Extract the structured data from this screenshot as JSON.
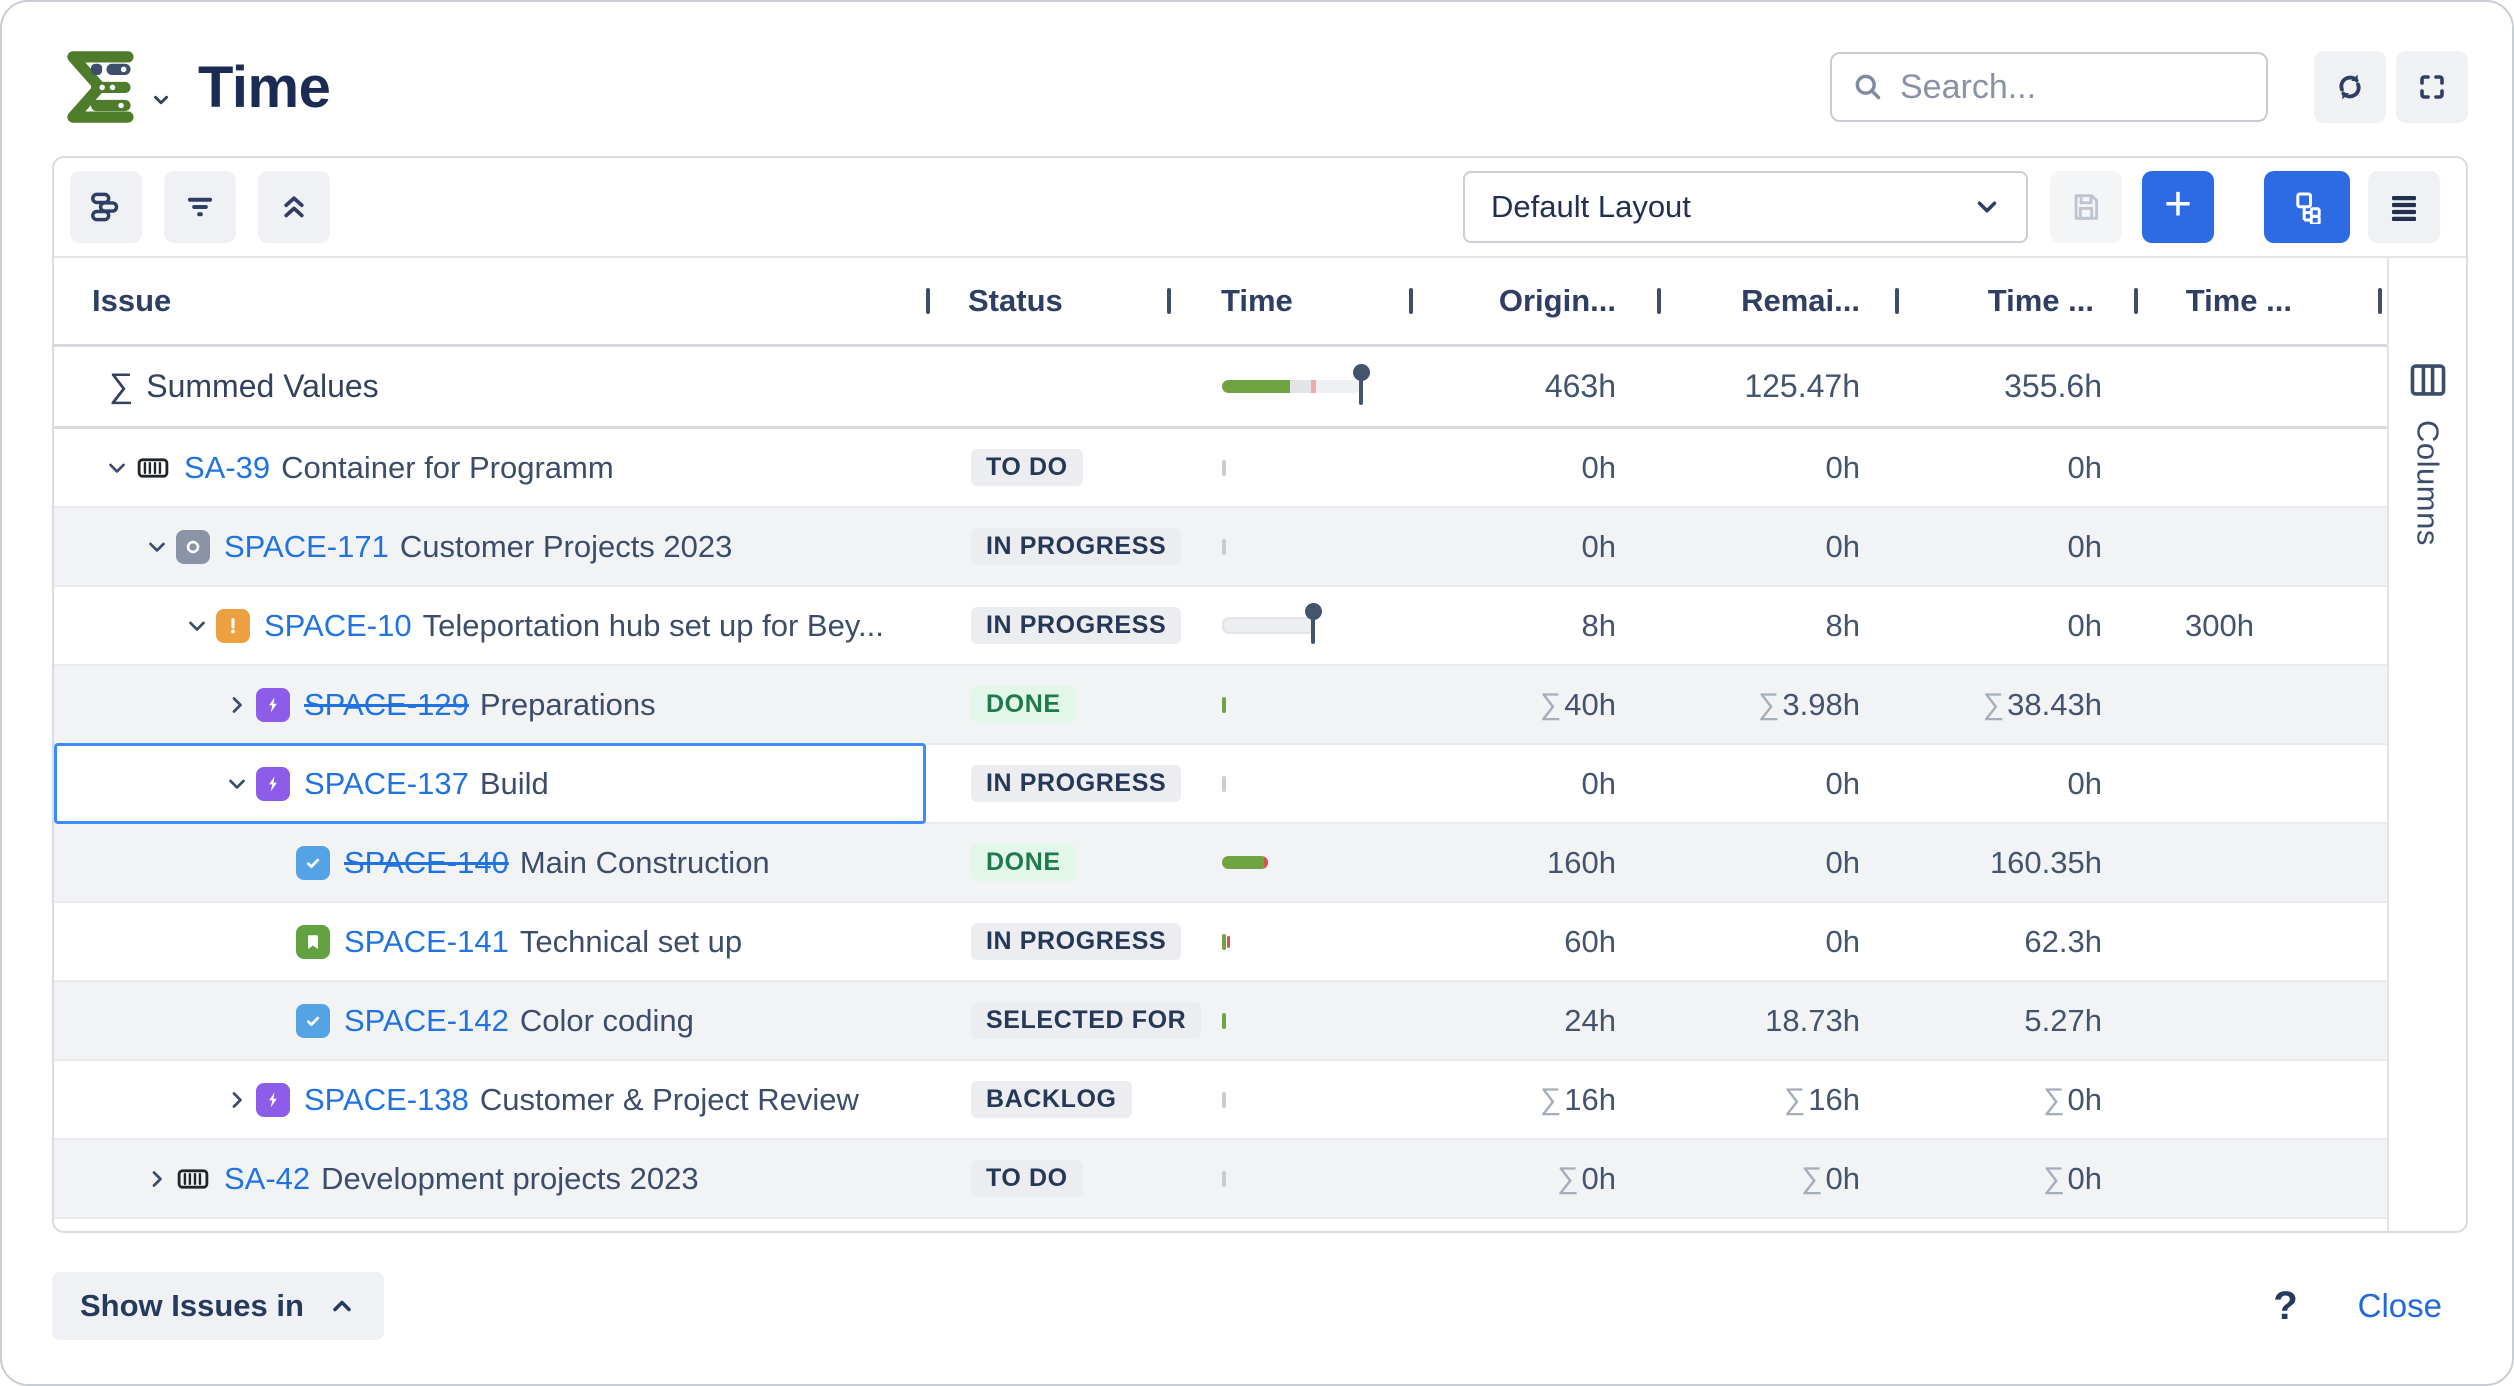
{
  "colors": {
    "accent": "#2C6BE3",
    "link": "#2173E2",
    "navy": "#253858",
    "text": "#44546F",
    "row_alt": "#F2F3F5",
    "row_border": "#E9EAEE",
    "badge_bg": "#EBEDF0",
    "done_bg": "#E2F6EA",
    "done_text": "#1F7A4D",
    "epic": "#8D5CE8",
    "task": "#54A3E4",
    "story": "#63A240",
    "warn": "#EDA03F",
    "objective": "#8A94A6",
    "bar_green": "#6FA441",
    "bar_red": "#D9534F",
    "pin": "#44546F",
    "sigma": "#A6AEBB",
    "logo_green": "#4E7C2A",
    "selection": "#3E8BFF",
    "btn_bg": "#F0F1F4",
    "close_link": "#2168E4"
  },
  "glyphs": {
    "sigma": "∑"
  },
  "header": {
    "title": "Time",
    "search_placeholder": "Search..."
  },
  "toolbar": {
    "layout_select_value": "Default Layout",
    "add_label": "+"
  },
  "table": {
    "columns": [
      {
        "label": "Issue"
      },
      {
        "label": "Status"
      },
      {
        "label": "Time"
      },
      {
        "label": "Origin..."
      },
      {
        "label": "Remai..."
      },
      {
        "label": "Time ..."
      },
      {
        "label": "Time ..."
      }
    ],
    "summed": {
      "label": "Summed Values",
      "original": "463h",
      "remaining": "125.47h",
      "time_spent": "355.6h"
    },
    "rows": [
      {
        "key": "SA-39",
        "title": "Container for Programm",
        "level": 0,
        "chevron": "down",
        "icon": "container",
        "status": "TO DO",
        "status_type": "neutral",
        "bar": "tick-gray",
        "struck": false,
        "selected": false,
        "values": [
          {
            "sigma": false,
            "t": "0h"
          },
          {
            "sigma": false,
            "t": "0h"
          },
          {
            "sigma": false,
            "t": "0h"
          },
          {
            "sigma": false,
            "t": ""
          }
        ]
      },
      {
        "key": "SPACE-171",
        "title": "Customer Projects 2023",
        "level": 1,
        "chevron": "down",
        "icon": "objective",
        "status": "IN PROGRESS",
        "status_type": "neutral",
        "bar": "tick-gray",
        "struck": false,
        "selected": false,
        "values": [
          {
            "sigma": false,
            "t": "0h"
          },
          {
            "sigma": false,
            "t": "0h"
          },
          {
            "sigma": false,
            "t": "0h"
          },
          {
            "sigma": false,
            "t": ""
          }
        ]
      },
      {
        "key": "SPACE-10",
        "title": "Teleportation hub set up for Bey...",
        "level": 2,
        "chevron": "down",
        "icon": "warning",
        "status": "IN PROGRESS",
        "status_type": "neutral",
        "bar": "track-pin",
        "struck": false,
        "selected": false,
        "values": [
          {
            "sigma": false,
            "t": "8h"
          },
          {
            "sigma": false,
            "t": "8h"
          },
          {
            "sigma": false,
            "t": "0h"
          },
          {
            "sigma": false,
            "t": "300h"
          }
        ]
      },
      {
        "key": "SPACE-129",
        "title": "Preparations",
        "level": 3,
        "chevron": "right",
        "icon": "epic",
        "status": "DONE",
        "status_type": "done",
        "bar": "tick-green",
        "struck": true,
        "selected": false,
        "values": [
          {
            "sigma": true,
            "t": "40h"
          },
          {
            "sigma": true,
            "t": "3.98h"
          },
          {
            "sigma": true,
            "t": "38.43h"
          },
          {
            "sigma": false,
            "t": ""
          }
        ]
      },
      {
        "key": "SPACE-137",
        "title": "Build",
        "level": 3,
        "chevron": "down",
        "icon": "epic",
        "status": "IN PROGRESS",
        "status_type": "neutral",
        "bar": "tick-gray",
        "struck": false,
        "selected": true,
        "values": [
          {
            "sigma": false,
            "t": "0h"
          },
          {
            "sigma": false,
            "t": "0h"
          },
          {
            "sigma": false,
            "t": "0h"
          },
          {
            "sigma": false,
            "t": ""
          }
        ]
      },
      {
        "key": "SPACE-140",
        "title": "Main Construction",
        "level": 4,
        "chevron": "none",
        "icon": "task",
        "status": "DONE",
        "status_type": "done",
        "bar": "pill-green",
        "struck": true,
        "selected": false,
        "values": [
          {
            "sigma": false,
            "t": "160h"
          },
          {
            "sigma": false,
            "t": "0h"
          },
          {
            "sigma": false,
            "t": "160.35h"
          },
          {
            "sigma": false,
            "t": ""
          }
        ]
      },
      {
        "key": "SPACE-141",
        "title": "Technical set up",
        "level": 4,
        "chevron": "none",
        "icon": "story",
        "status": "IN PROGRESS",
        "status_type": "neutral",
        "bar": "tick-green-red",
        "struck": false,
        "selected": false,
        "values": [
          {
            "sigma": false,
            "t": "60h"
          },
          {
            "sigma": false,
            "t": "0h"
          },
          {
            "sigma": false,
            "t": "62.3h"
          },
          {
            "sigma": false,
            "t": ""
          }
        ]
      },
      {
        "key": "SPACE-142",
        "title": "Color coding",
        "level": 4,
        "chevron": "none",
        "icon": "task",
        "status": "SELECTED FOR",
        "status_type": "neutral",
        "bar": "tick-green",
        "struck": false,
        "selected": false,
        "values": [
          {
            "sigma": false,
            "t": "24h"
          },
          {
            "sigma": false,
            "t": "18.73h"
          },
          {
            "sigma": false,
            "t": "5.27h"
          },
          {
            "sigma": false,
            "t": ""
          }
        ]
      },
      {
        "key": "SPACE-138",
        "title": "Customer & Project Review",
        "level": 3,
        "chevron": "right",
        "icon": "epic",
        "status": "BACKLOG",
        "status_type": "neutral",
        "bar": "tick-gray",
        "struck": false,
        "selected": false,
        "values": [
          {
            "sigma": true,
            "t": "16h"
          },
          {
            "sigma": true,
            "t": "16h"
          },
          {
            "sigma": true,
            "t": "0h"
          },
          {
            "sigma": false,
            "t": ""
          }
        ]
      },
      {
        "key": "SA-42",
        "title": "Development projects 2023",
        "level": 1,
        "chevron": "right",
        "icon": "container",
        "status": "TO DO",
        "status_type": "neutral",
        "bar": "tick-gray",
        "struck": false,
        "selected": false,
        "values": [
          {
            "sigma": true,
            "t": "0h"
          },
          {
            "sigma": true,
            "t": "0h"
          },
          {
            "sigma": true,
            "t": "0h"
          },
          {
            "sigma": false,
            "t": ""
          }
        ]
      }
    ]
  },
  "sidebar": {
    "columns_label": "Columns"
  },
  "footer": {
    "show_issues_label": "Show Issues in",
    "help_label": "?",
    "close_label": "Close"
  }
}
